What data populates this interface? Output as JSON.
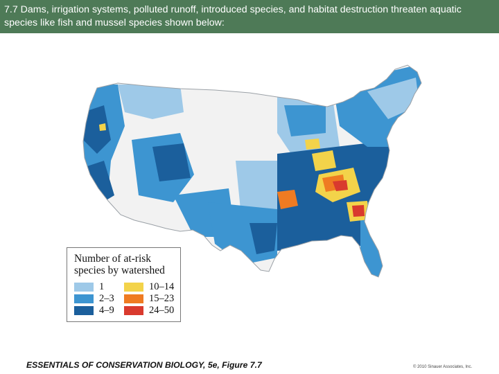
{
  "header": {
    "text": "7.7 Dams, irrigation systems, polluted runoff, introduced species, and habitat destruction threaten aquatic species like fish and mussel species shown below:",
    "background": "#4e7a57"
  },
  "map": {
    "colors": {
      "c1": "#9ec9e8",
      "c2_3": "#3d95d1",
      "c4_9": "#1b5f9c",
      "c10_14": "#f3d34a",
      "c15_23": "#ef7b22",
      "c24_50": "#d93a2e",
      "none": "#f2f2f2",
      "border": "#9aa0a6"
    }
  },
  "legend": {
    "title": "Number of at-risk species by watershed",
    "items": [
      {
        "label": "1",
        "color": "#9ec9e8"
      },
      {
        "label": "2–3",
        "color": "#3d95d1"
      },
      {
        "label": "4–9",
        "color": "#1b5f9c"
      },
      {
        "label": "10–14",
        "color": "#f3d34a"
      },
      {
        "label": "15–23",
        "color": "#ef7b22"
      },
      {
        "label": "24–50",
        "color": "#d93a2e"
      }
    ]
  },
  "footer": {
    "caption": "ESSENTIALS OF CONSERVATION BIOLOGY, 5e, Figure 7.7",
    "copyright": "© 2010 Sinauer Associates, Inc."
  }
}
